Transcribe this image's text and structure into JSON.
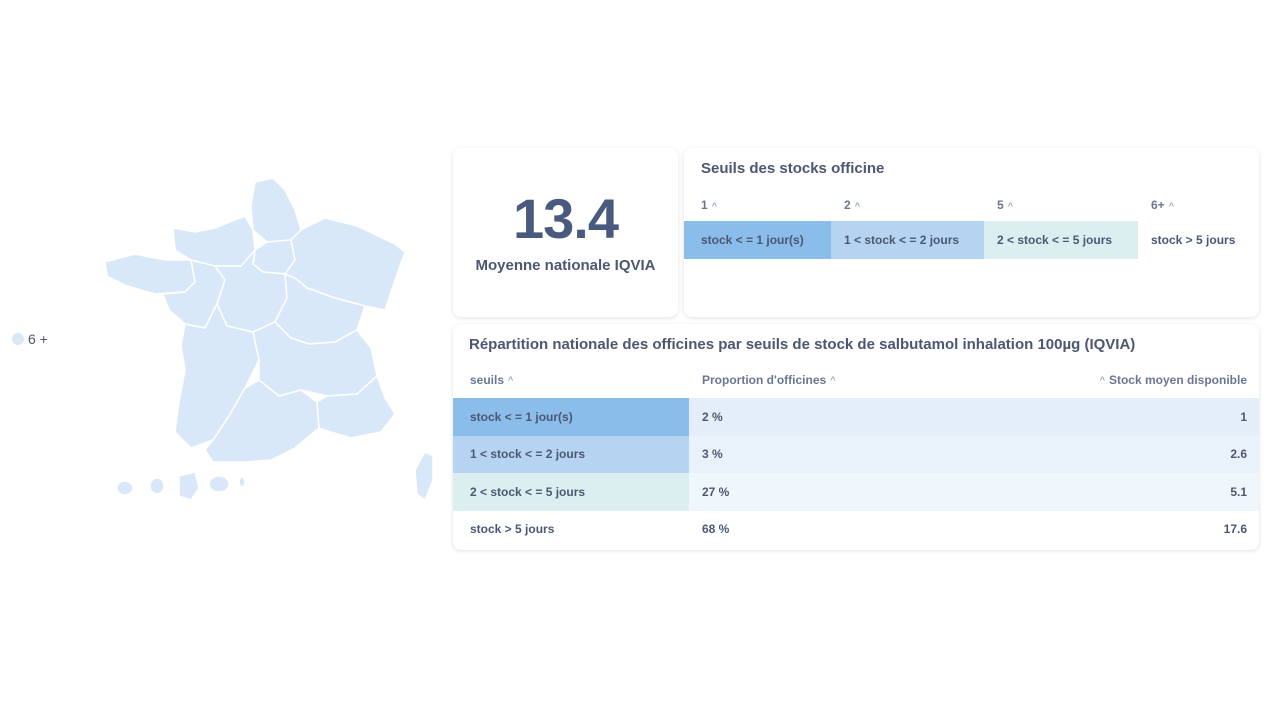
{
  "legend": {
    "label": "6 +",
    "color": "#d8e8f8"
  },
  "kpi": {
    "value": "13.4",
    "label": "Moyenne nationale IQVIA"
  },
  "thresholds": {
    "title": "Seuils des stocks officine",
    "columns": [
      "1",
      "2",
      "5",
      "6+"
    ],
    "values": [
      "stock < = 1 jour(s)",
      "1 < stock < = 2 jours",
      "2 < stock < = 5 jours",
      "stock > 5 jours"
    ],
    "colors": [
      "#8bbdea",
      "#b6d4f2",
      "#dceff0",
      "#ffffff"
    ]
  },
  "repartition": {
    "title": "Répartition nationale des officines par seuils de stock de salbutamol inhalation 100µg (IQVIA)",
    "headers": [
      "seuils",
      "Proportion d'officines",
      "Stock moyen disponible"
    ],
    "rows": [
      {
        "seuil": "stock < = 1 jour(s)",
        "proportion": "2 %",
        "stock": "1",
        "seuil_color": "#8bbdea",
        "row_color": "#e3eef9"
      },
      {
        "seuil": "1 < stock < = 2 jours",
        "proportion": "3 %",
        "stock": "2.6",
        "seuil_color": "#b6d4f2",
        "row_color": "#e9f2fb"
      },
      {
        "seuil": "2 < stock < = 5 jours",
        "proportion": "27 %",
        "stock": "5.1",
        "seuil_color": "#dceff0",
        "row_color": "#f0f7fc"
      },
      {
        "seuil": "stock > 5 jours",
        "proportion": "68 %",
        "stock": "17.6",
        "seuil_color": "#ffffff",
        "row_color": "#ffffff"
      }
    ]
  },
  "icons": {
    "sort": "sort-ascending-icon"
  }
}
